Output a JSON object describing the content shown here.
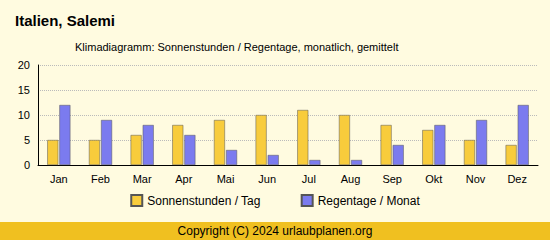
{
  "chart_data": {
    "type": "bar",
    "title": "Italien, Salemi",
    "subtitle": "Klimadiagramm: Sonnenstunden / Regentage, monatlich, gemittelt",
    "annotations": [
      "Copyright (C) 2024 urlaubplanen.org"
    ],
    "categories": [
      "Jan",
      "Feb",
      "Mar",
      "Apr",
      "Mai",
      "Jun",
      "Jul",
      "Aug",
      "Sep",
      "Okt",
      "Nov",
      "Dez"
    ],
    "series": [
      {
        "name": "Sonnenstunden / Tag",
        "color": "#f8cc3c",
        "values": [
          5,
          5,
          6,
          8,
          9,
          10,
          11,
          10,
          8,
          7,
          5,
          4
        ]
      },
      {
        "name": "Regentage / Monat",
        "color": "#7b7bef",
        "values": [
          12,
          9,
          8,
          6,
          3,
          2,
          1,
          1,
          4,
          8,
          9,
          12
        ]
      }
    ],
    "ylim": [
      0,
      20
    ],
    "yticks": [
      0,
      5,
      10,
      15,
      20
    ],
    "grid": true,
    "legend": "bottom"
  }
}
